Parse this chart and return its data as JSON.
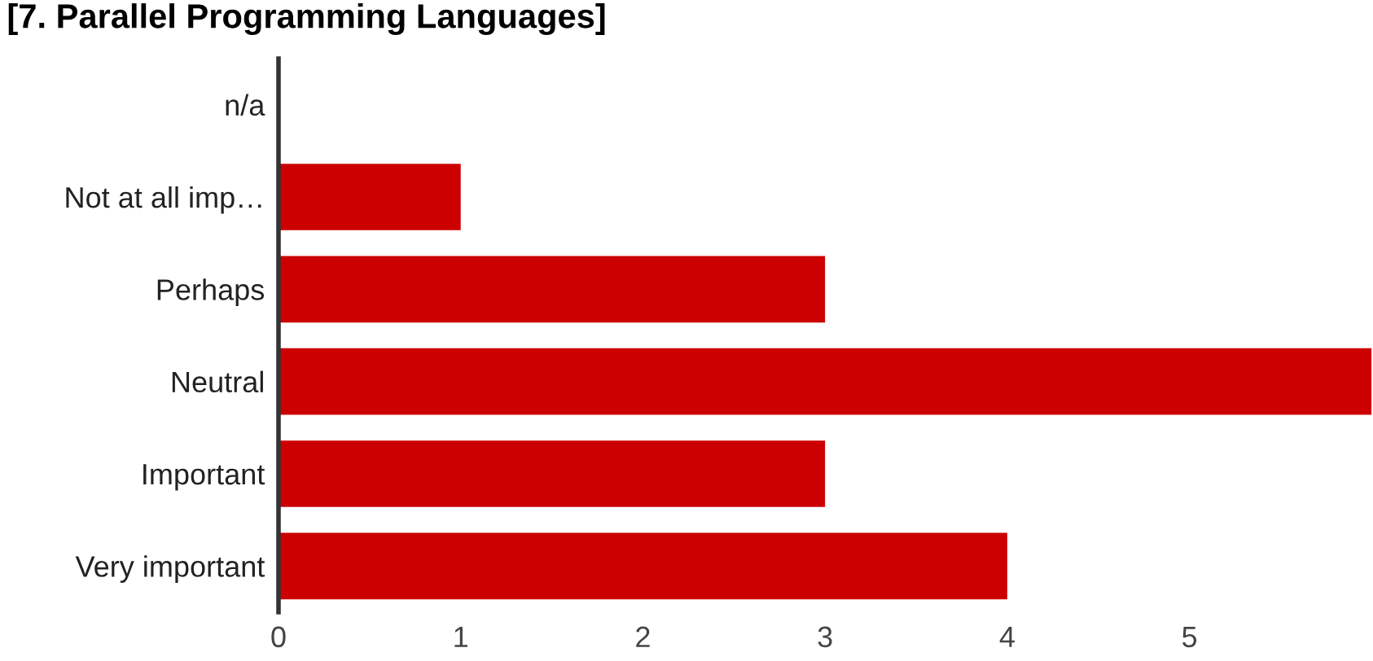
{
  "chart_data": {
    "type": "bar",
    "orientation": "horizontal",
    "title": "[7. Parallel Programming Languages]",
    "categories": [
      "n/a",
      "Not at all imp…",
      "Perhaps",
      "Neutral",
      "Important",
      "Very important"
    ],
    "values": [
      0,
      1,
      3,
      6,
      3,
      4
    ],
    "color": "#cc0000",
    "xlim": [
      0,
      6
    ],
    "xticks": [
      0,
      1,
      2,
      3,
      4,
      5
    ],
    "grid": false,
    "legend": false
  }
}
